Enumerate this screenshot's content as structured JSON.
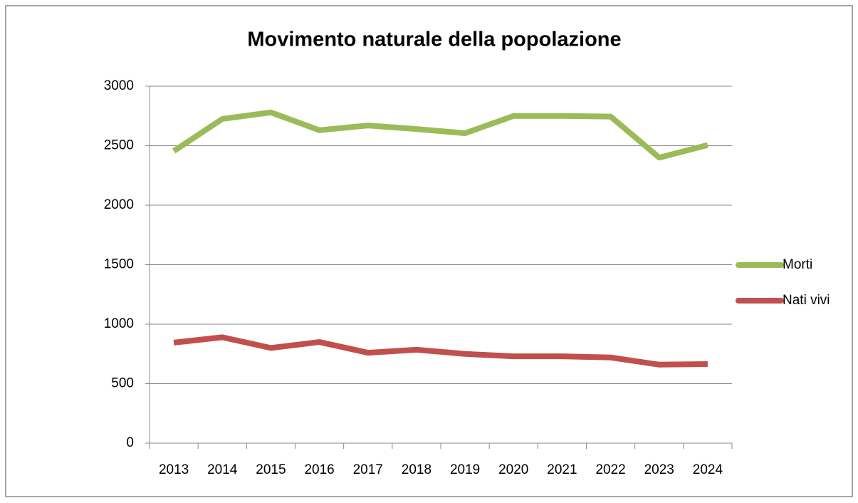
{
  "chart_data": {
    "type": "line",
    "title": "Movimento naturale della popolazione",
    "categories": [
      "2013",
      "2014",
      "2015",
      "2016",
      "2017",
      "2018",
      "2019",
      "2020",
      "2021",
      "2022",
      "2023",
      "2024"
    ],
    "series": [
      {
        "name": "Morti",
        "color": "#9bbb59",
        "values": [
          2455,
          2725,
          2780,
          2630,
          2670,
          2640,
          2605,
          2750,
          2750,
          2745,
          2400,
          2505
        ]
      },
      {
        "name": "Nati vivi",
        "color": "#c0504d",
        "values": [
          845,
          890,
          800,
          850,
          760,
          785,
          750,
          730,
          730,
          720,
          660,
          665
        ]
      }
    ],
    "ylim": [
      0,
      3000
    ],
    "yticks": [
      0,
      500,
      1000,
      1500,
      2000,
      2500,
      3000
    ],
    "grid": true,
    "legend": "right"
  }
}
